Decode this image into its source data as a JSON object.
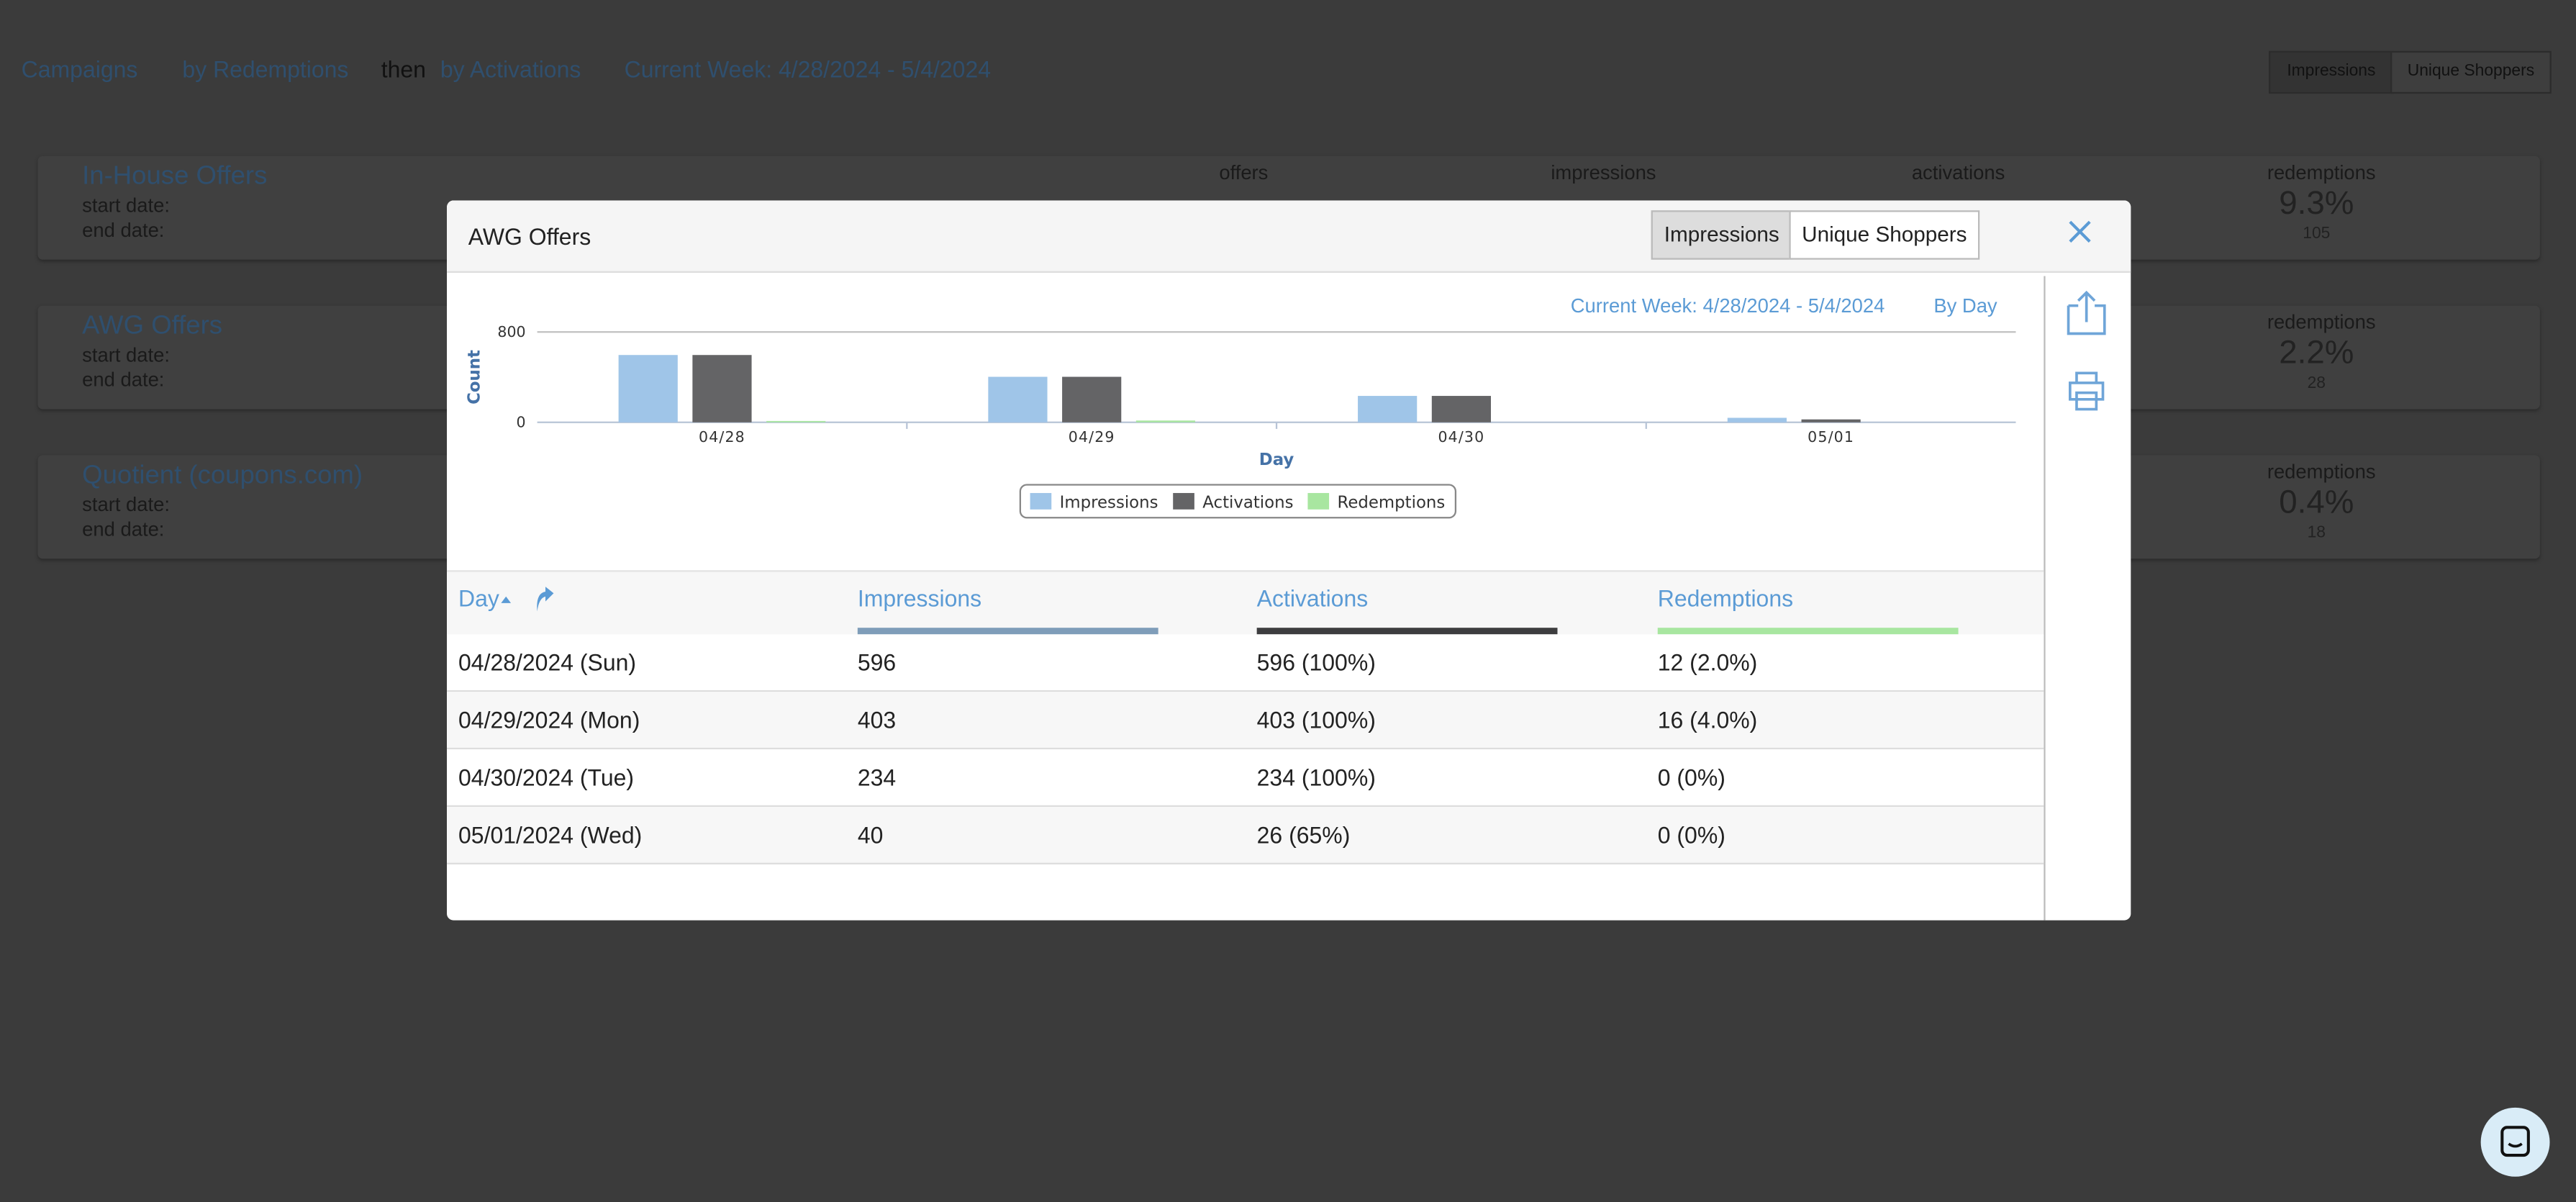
{
  "toolbar": {
    "campaigns": "Campaigns",
    "sort_primary": "by Redemptions",
    "then": "then",
    "sort_secondary": "by Activations",
    "week": "Current Week: 4/28/2024 - 5/4/2024",
    "toggle": [
      "Impressions",
      "Unique Shoppers"
    ]
  },
  "cards": [
    {
      "title": "In-House Offers",
      "start": "start date:",
      "end": "end date:",
      "labels": [
        "offers",
        "impressions",
        "activations",
        "redemptions"
      ],
      "redemptions": "9.3%",
      "redemptions_count": "105"
    },
    {
      "title": "AWG Offers",
      "start": "start date:",
      "end": "end date:",
      "labels": [
        "redemptions"
      ],
      "redemptions": "2.2%",
      "redemptions_count": "28"
    },
    {
      "title": "Quotient (coupons.com)",
      "start": "start date:",
      "end": "end date:",
      "labels": [
        "redemptions"
      ],
      "redemptions": "0.4%",
      "redemptions_count": "18"
    }
  ],
  "modal": {
    "title": "AWG Offers",
    "toggle": [
      "Impressions",
      "Unique Shoppers"
    ],
    "week": "Current Week: 4/28/2024 - 5/4/2024",
    "granularity": "By Day"
  },
  "chart_data": {
    "type": "bar",
    "ylabel": "Count",
    "xlabel": "Day",
    "categories": [
      "04/28",
      "04/29",
      "04/30",
      "05/01"
    ],
    "series": [
      {
        "name": "Impressions",
        "color": "#9fc5e8",
        "values": [
          596,
          403,
          234,
          40
        ]
      },
      {
        "name": "Activations",
        "color": "#646466",
        "values": [
          596,
          403,
          234,
          26
        ]
      },
      {
        "name": "Redemptions",
        "color": "#a8e6a0",
        "values": [
          12,
          16,
          0,
          0
        ]
      }
    ],
    "ylim": [
      0,
      800
    ],
    "yticks": [
      0,
      800
    ],
    "grid": true
  },
  "table": {
    "headers": [
      "Day",
      "Impressions",
      "Activations",
      "Redemptions"
    ],
    "rows": [
      [
        "04/28/2024 (Sun)",
        "596",
        "596 (100%)",
        "12 (2.0%)"
      ],
      [
        "04/29/2024 (Mon)",
        "403",
        "403 (100%)",
        "16 (4.0%)"
      ],
      [
        "04/30/2024 (Tue)",
        "234",
        "234 (100%)",
        "0 (0%)"
      ],
      [
        "05/01/2024 (Wed)",
        "40",
        "26 (65%)",
        "0 (0%)"
      ]
    ]
  }
}
